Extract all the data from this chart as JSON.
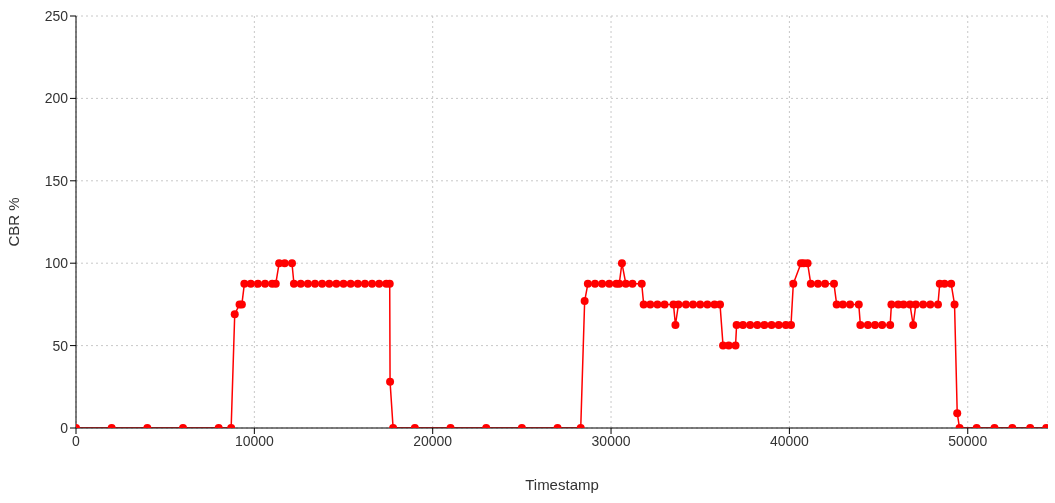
{
  "chart_data": {
    "type": "line",
    "xlabel": "Timestamp",
    "ylabel": "CBR %",
    "x": [
      0,
      2000,
      4000,
      6000,
      8000,
      8700,
      8900,
      9170,
      9300,
      9440,
      9800,
      10200,
      10600,
      11000,
      11200,
      11390,
      11700,
      12110,
      12220,
      12600,
      13000,
      13400,
      13800,
      14200,
      14600,
      15000,
      15400,
      15800,
      16200,
      16600,
      17000,
      17400,
      17590,
      17610,
      17780,
      19000,
      21000,
      23000,
      25000,
      27000,
      28300,
      28520,
      28700,
      29100,
      29500,
      29900,
      30300,
      30460,
      30610,
      30830,
      31200,
      31720,
      31830,
      32200,
      32600,
      33000,
      33500,
      33610,
      33780,
      34200,
      34600,
      35000,
      35400,
      35800,
      36110,
      36280,
      36600,
      36980,
      37040,
      37400,
      37800,
      38200,
      38600,
      39000,
      39400,
      39800,
      40090,
      40220,
      40650,
      40800,
      41020,
      41200,
      41600,
      42000,
      42500,
      42650,
      43000,
      43400,
      43890,
      43980,
      44400,
      44800,
      45200,
      45650,
      45720,
      46100,
      46400,
      46760,
      46940,
      47090,
      47500,
      47900,
      48330,
      48430,
      48700,
      49070,
      49260,
      49410,
      49540,
      50500,
      51500,
      52500,
      53500,
      54400
    ],
    "series": [
      {
        "color": "#ff0000",
        "values": [
          0,
          0,
          0,
          0,
          0,
          0,
          69,
          75,
          75,
          87.5,
          87.5,
          87.5,
          87.5,
          87.5,
          87.5,
          100,
          100,
          100,
          87.5,
          87.5,
          87.5,
          87.5,
          87.5,
          87.5,
          87.5,
          87.5,
          87.5,
          87.5,
          87.5,
          87.5,
          87.5,
          87.5,
          87.5,
          28,
          0,
          0,
          0,
          0,
          0,
          0,
          0,
          77,
          87.5,
          87.5,
          87.5,
          87.5,
          87.5,
          87.5,
          100,
          87.5,
          87.5,
          87.5,
          75,
          75,
          75,
          75,
          75,
          62.5,
          75,
          75,
          75,
          75,
          75,
          75,
          75,
          50,
          50,
          50,
          62.5,
          62.5,
          62.5,
          62.5,
          62.5,
          62.5,
          62.5,
          62.5,
          62.5,
          87.5,
          100,
          100,
          100,
          87.5,
          87.5,
          87.5,
          87.5,
          75,
          75,
          75,
          75,
          62.5,
          62.5,
          62.5,
          62.5,
          62.5,
          75,
          75,
          75,
          75,
          62.5,
          75,
          75,
          75,
          75,
          87.5,
          87.5,
          87.5,
          75,
          9,
          0,
          0,
          0,
          0,
          0,
          0
        ]
      }
    ],
    "xlim": [
      0,
      54500
    ],
    "xticks": [
      0,
      10000,
      20000,
      30000,
      40000,
      50000
    ],
    "ylim": [
      0,
      250
    ],
    "yticks": [
      0,
      50,
      100,
      150,
      200,
      250
    ],
    "grid": true,
    "legend": false,
    "marker": "circle",
    "line_style": "solid"
  }
}
